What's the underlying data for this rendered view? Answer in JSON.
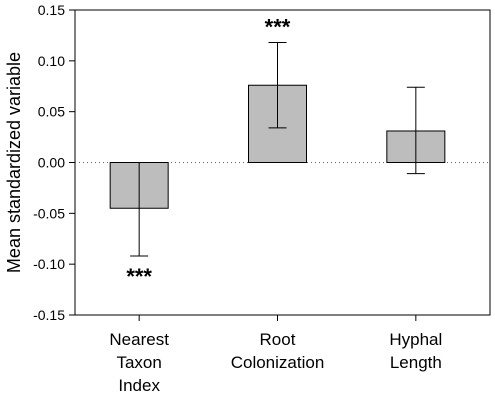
{
  "chart_data": {
    "type": "bar",
    "ylabel": "Mean standardized variable",
    "ylim": [
      -0.15,
      0.15
    ],
    "yticks": [
      "-0.15",
      "-0.10",
      "-0.05",
      "0.00",
      "0.05",
      "0.10",
      "0.15"
    ],
    "categories": [
      [
        "Nearest",
        "Taxon",
        "Index"
      ],
      [
        "Root",
        "Colonization"
      ],
      [
        "Hyphal",
        "Length"
      ]
    ],
    "values": [
      -0.045,
      0.076,
      0.031
    ],
    "error_low": [
      -0.092,
      0.034,
      -0.011
    ],
    "error_high": [
      0.0,
      0.118,
      0.074
    ],
    "significance": [
      "***",
      "***",
      ""
    ],
    "zero_line": "dotted",
    "bar_color": "#bdbdbd",
    "grid": false
  }
}
